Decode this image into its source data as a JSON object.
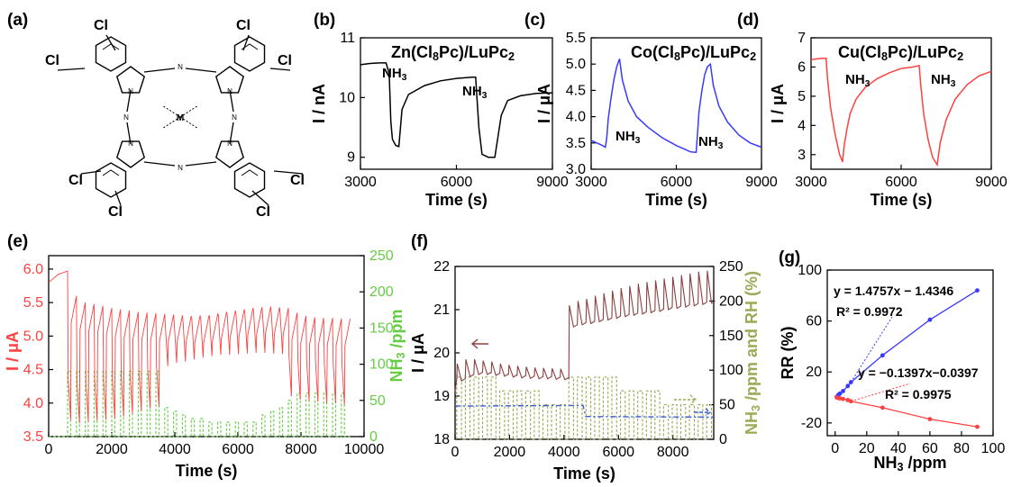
{
  "panels": [
    {
      "id": "a",
      "label": "(a)"
    },
    {
      "id": "b",
      "label": "(b)"
    },
    {
      "id": "c",
      "label": "(c)"
    },
    {
      "id": "d",
      "label": "(d)"
    },
    {
      "id": "e",
      "label": "(e)"
    },
    {
      "id": "f",
      "label": "(f)"
    },
    {
      "id": "g",
      "label": "(g)"
    }
  ],
  "molecule": {
    "substituent": "Cl",
    "center_metal": "M",
    "bridge_atom": "N"
  },
  "chart_data": [
    {
      "panel": "b",
      "type": "line",
      "title": "Zn(Cl8Pc)/LuPc2",
      "xlabel": "Time (s)",
      "ylabel": "I / nA",
      "xlim": [
        3000,
        9000
      ],
      "ylim": [
        8.8,
        11.0
      ],
      "xticks": [
        3000,
        6000,
        9000
      ],
      "yticks": [
        9,
        10,
        11
      ],
      "annotations": [
        "NH3",
        "NH3"
      ],
      "color": "#000000",
      "series": [
        {
          "x": [
            3000,
            3300,
            3600,
            3800,
            3900,
            3950,
            4000,
            4100,
            4200,
            4300,
            4500,
            5000,
            5500,
            6000,
            6500,
            6600,
            6700,
            6800,
            7000,
            7100,
            7200,
            7400,
            7600,
            8000,
            8500,
            9000
          ],
          "y": [
            10.55,
            10.57,
            10.58,
            10.58,
            10.4,
            9.6,
            9.3,
            9.2,
            9.18,
            9.8,
            10.05,
            10.2,
            10.28,
            10.32,
            10.34,
            10.34,
            9.5,
            9.05,
            9.0,
            9.0,
            9.0,
            9.7,
            9.95,
            10.03,
            10.07,
            10.08
          ]
        }
      ]
    },
    {
      "panel": "c",
      "type": "line",
      "title": "Co(Cl8Pc)/LuPc2",
      "xlabel": "Time (s)",
      "ylabel": "I / μA",
      "xlim": [
        3000,
        9000
      ],
      "ylim": [
        3.0,
        5.5
      ],
      "xticks": [
        3000,
        6000,
        9000
      ],
      "yticks": [
        3.0,
        3.5,
        4.0,
        4.5,
        5.0,
        5.5
      ],
      "annotations": [
        "NH3",
        "NH3"
      ],
      "color": "#3a3aff",
      "series": [
        {
          "x": [
            3000,
            3200,
            3400,
            3500,
            3550,
            3600,
            3700,
            3800,
            3900,
            4000,
            4100,
            4300,
            4600,
            5000,
            5500,
            6000,
            6500,
            6700,
            6750,
            6800,
            6900,
            7000,
            7100,
            7200,
            7300,
            7500,
            7800,
            8200,
            8600,
            9000
          ],
          "y": [
            3.55,
            3.5,
            3.45,
            3.42,
            3.6,
            3.95,
            4.35,
            4.7,
            4.95,
            5.1,
            4.7,
            4.3,
            4.0,
            3.8,
            3.6,
            3.45,
            3.33,
            3.32,
            3.7,
            4.1,
            4.5,
            4.8,
            4.95,
            5.0,
            4.6,
            4.2,
            3.9,
            3.65,
            3.5,
            3.42
          ]
        }
      ]
    },
    {
      "panel": "d",
      "type": "line",
      "title": "Cu(Cl8Pc)/LuPc2",
      "xlabel": "Time (s)",
      "ylabel": "I / μA",
      "xlim": [
        3000,
        9000
      ],
      "ylim": [
        2.5,
        7.0
      ],
      "xticks": [
        3000,
        6000,
        9000
      ],
      "yticks": [
        3,
        4,
        5,
        6,
        7
      ],
      "annotations": [
        "NH3",
        "NH3"
      ],
      "color": "#ff4040",
      "series": [
        {
          "x": [
            3000,
            3200,
            3400,
            3500,
            3550,
            3650,
            3800,
            3950,
            4050,
            4100,
            4200,
            4300,
            4500,
            4800,
            5200,
            5600,
            6000,
            6400,
            6600,
            6650,
            6750,
            6900,
            7050,
            7200,
            7300,
            7500,
            7800,
            8200,
            8600,
            9000
          ],
          "y": [
            6.25,
            6.28,
            6.3,
            6.3,
            5.6,
            4.6,
            3.7,
            3.0,
            2.75,
            3.3,
            3.9,
            4.4,
            4.9,
            5.3,
            5.6,
            5.8,
            5.95,
            6.0,
            6.05,
            5.4,
            4.4,
            3.5,
            2.9,
            2.65,
            3.4,
            4.2,
            4.9,
            5.4,
            5.7,
            5.85
          ]
        }
      ]
    },
    {
      "panel": "e",
      "type": "line",
      "xlabel": "Time (s)",
      "ylabel": "I / μA",
      "ylabel_right": "NH3 /ppm",
      "xlim": [
        0,
        10000
      ],
      "ylim": [
        3.5,
        6.2
      ],
      "ylim_right": [
        0,
        250
      ],
      "xticks": [
        0,
        2000,
        4000,
        6000,
        8000,
        10000
      ],
      "yticks": [
        3.5,
        4.0,
        4.5,
        5.0,
        5.5,
        6.0
      ],
      "yticks_right": [
        0,
        50,
        100,
        150,
        200,
        250
      ],
      "current_color": "#ff4040",
      "nh3_color": "#66cc44",
      "period_s": 280,
      "start_s": 600,
      "pulses": 32,
      "peak_current_uA": [
        5.6,
        5.5,
        5.48,
        5.45,
        5.42,
        5.4,
        5.38,
        5.36,
        5.35,
        5.34,
        5.33,
        5.32,
        5.31,
        5.3,
        5.3,
        5.3,
        5.33,
        5.36,
        5.38,
        5.4,
        5.42,
        5.43,
        5.44,
        5.43,
        5.42,
        5.35,
        5.3,
        5.28,
        5.27,
        5.27,
        5.26,
        5.26
      ],
      "valley_current_uA": [
        3.75,
        3.7,
        3.72,
        3.74,
        3.75,
        3.77,
        3.8,
        3.84,
        3.88,
        3.92,
        3.95,
        4.55,
        4.6,
        4.62,
        4.65,
        4.68,
        4.7,
        4.72,
        4.72,
        4.73,
        4.74,
        4.75,
        4.75,
        4.74,
        4.73,
        4.1,
        4.05,
        4.03,
        4.02,
        4.0,
        4.0,
        3.98
      ],
      "nh3_ppm": [
        90,
        90,
        90,
        90,
        90,
        90,
        90,
        90,
        90,
        90,
        90,
        40,
        35,
        30,
        25,
        25,
        20,
        20,
        20,
        20,
        20,
        20,
        30,
        35,
        40,
        50,
        60,
        60,
        60,
        60,
        60,
        60
      ]
    },
    {
      "panel": "f",
      "type": "line",
      "xlabel": "Time (s)",
      "ylabel": "I / μA",
      "ylabel_right": "NH3 /ppm and RH (%)",
      "xlim": [
        0,
        9500
      ],
      "ylim": [
        18,
        22
      ],
      "ylim_right": [
        0,
        250
      ],
      "xticks": [
        0,
        2000,
        4000,
        6000,
        8000
      ],
      "yticks": [
        18,
        19,
        20,
        21,
        22
      ],
      "yticks_right": [
        0,
        50,
        100,
        150,
        200,
        250
      ],
      "current_color": "#8b4040",
      "nh3_color": "#9aaa55",
      "rh_color": "#3a5bd9",
      "pulses": 30,
      "peak_current_uA": [
        19.75,
        19.85,
        19.85,
        19.82,
        19.8,
        19.75,
        19.72,
        19.7,
        19.68,
        19.66,
        19.65,
        19.64,
        19.63,
        21.1,
        21.2,
        21.25,
        21.32,
        21.38,
        21.44,
        21.5,
        21.55,
        21.6,
        21.64,
        21.68,
        21.72,
        21.76,
        21.8,
        21.84,
        21.88,
        21.9
      ],
      "valley_current_uA": [
        19.35,
        19.45,
        19.5,
        19.5,
        19.48,
        19.46,
        19.44,
        19.42,
        19.41,
        19.4,
        19.4,
        19.39,
        19.38,
        20.6,
        20.65,
        20.68,
        20.72,
        20.76,
        20.8,
        20.84,
        20.87,
        20.9,
        20.93,
        20.96,
        21.0,
        21.03,
        21.06,
        21.09,
        21.12,
        21.15
      ],
      "nh3_ppm": [
        90,
        90,
        90,
        90,
        90,
        70,
        70,
        70,
        70,
        70,
        50,
        50,
        50,
        90,
        90,
        90,
        90,
        90,
        90,
        70,
        70,
        70,
        70,
        70,
        50,
        50,
        50,
        50,
        50,
        50
      ],
      "rh_percent": [
        [
          0,
          48
        ],
        [
          4700,
          49
        ],
        [
          4800,
          33
        ],
        [
          9500,
          32
        ]
      ]
    },
    {
      "panel": "g",
      "type": "scatter",
      "xlabel": "NH3 /ppm",
      "ylabel": "RR (%)",
      "xlim": [
        -5,
        100
      ],
      "ylim": [
        -30,
        100
      ],
      "xticks": [
        0,
        20,
        40,
        60,
        80,
        100
      ],
      "yticks": [
        -20,
        20,
        60,
        100
      ],
      "series": [
        {
          "color": "#3a3aff",
          "x": [
            1,
            2,
            3,
            5,
            8,
            10,
            30,
            60,
            90
          ],
          "y": [
            0.5,
            2,
            3,
            5,
            9,
            12,
            33,
            61,
            84
          ],
          "fit": "y = 1.4757x − 1.4346",
          "r2": "R² = 0.9972"
        },
        {
          "color": "#ff4040",
          "x": [
            1,
            2,
            3,
            5,
            8,
            10,
            30,
            60,
            90
          ],
          "y": [
            0,
            -0.5,
            -0.7,
            -1.2,
            -2,
            -3,
            -8,
            -17,
            -23
          ],
          "fit": "y = −0.1397x−0.0397",
          "r2": "R² = 0.9975"
        }
      ]
    }
  ]
}
